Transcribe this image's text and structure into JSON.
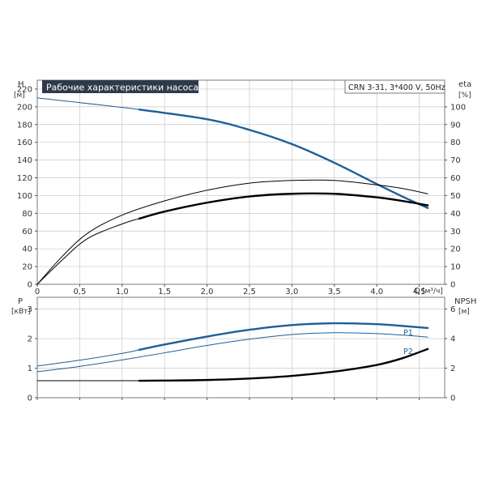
{
  "colors": {
    "blue": "#1f5f96",
    "black": "#000000",
    "title_bg": "#2d3a4a",
    "title_fg": "#ffffff",
    "grid": "#c8c8c8"
  },
  "chart_data": [
    {
      "type": "line",
      "title": "Рабочие характеристики насоса",
      "model": "CRN 3-31, 3*400 V, 50Hz",
      "xlabel": "Q",
      "xunit": "[м³/ч]",
      "xlim": [
        0,
        4.8
      ],
      "xticks": [
        0,
        0.5,
        1.0,
        1.5,
        2.0,
        2.5,
        3.0,
        3.5,
        4.0,
        4.5
      ],
      "xtick_labels": [
        "0",
        "0,5",
        "1,0",
        "1,5",
        "2,0",
        "2,5",
        "3,0",
        "3,5",
        "4,0",
        "4,5"
      ],
      "ylabel_left": "H",
      "yunit_left": "[м]",
      "ylim_left": [
        0,
        230
      ],
      "yticks_left": [
        0,
        20,
        40,
        60,
        80,
        100,
        120,
        140,
        160,
        180,
        200,
        220
      ],
      "ylabel_right": "eta",
      "yunit_right": "[%]",
      "ylim_right": [
        0,
        115
      ],
      "yticks_right": [
        0,
        10,
        20,
        30,
        40,
        50,
        60,
        70,
        80,
        90,
        100
      ],
      "grid": true,
      "series": [
        {
          "axis": "left",
          "color": "#1f5f96",
          "points": [
            [
              0,
              210
            ],
            [
              1.2,
              197
            ],
            [
              2.0,
              186
            ],
            [
              2.5,
              174
            ],
            [
              3.0,
              158
            ],
            [
              3.5,
              137
            ],
            [
              4.0,
              113
            ],
            [
              4.3,
              99
            ],
            [
              4.6,
              86
            ]
          ],
          "bold_from": 1.2
        },
        {
          "axis": "right",
          "color": "#000000",
          "points": [
            [
              0,
              0
            ],
            [
              0.3,
              16
            ],
            [
              0.6,
              29
            ],
            [
              1.0,
              39
            ],
            [
              1.5,
              47
            ],
            [
              2.0,
              53
            ],
            [
              2.5,
              57
            ],
            [
              3.0,
              58.5
            ],
            [
              3.5,
              58.5
            ],
            [
              4.0,
              56
            ],
            [
              4.3,
              54
            ],
            [
              4.6,
              51
            ]
          ]
        },
        {
          "axis": "right",
          "color": "#000000",
          "points": [
            [
              0,
              0
            ],
            [
              0.3,
              14
            ],
            [
              0.6,
              26
            ],
            [
              1.0,
              34
            ],
            [
              1.2,
              37
            ],
            [
              1.5,
              41
            ],
            [
              2.0,
              46
            ],
            [
              2.5,
              49.5
            ],
            [
              3.0,
              51
            ],
            [
              3.5,
              51
            ],
            [
              4.0,
              49
            ],
            [
              4.3,
              47
            ],
            [
              4.6,
              44.5
            ]
          ],
          "bold_from": 1.2
        }
      ]
    },
    {
      "type": "line",
      "xlim": [
        0,
        4.8
      ],
      "xticks": [
        0,
        0.5,
        1.0,
        1.5,
        2.0,
        2.5,
        3.0,
        3.5,
        4.0,
        4.5
      ],
      "ylabel_left": "P",
      "yunit_left": "[кВт]",
      "ylim_left": [
        0,
        3.4
      ],
      "yticks_left": [
        0,
        1,
        2,
        3
      ],
      "ylabel_right": "NPSH",
      "yunit_right": "[м]",
      "ylim_right": [
        0,
        6.8
      ],
      "yticks_right": [
        0,
        2,
        4,
        6
      ],
      "grid": true,
      "series": [
        {
          "name": "P1",
          "axis": "left",
          "color": "#1f5f96",
          "points": [
            [
              0,
              1.07
            ],
            [
              0.5,
              1.27
            ],
            [
              1.0,
              1.5
            ],
            [
              1.2,
              1.62
            ],
            [
              1.5,
              1.8
            ],
            [
              2.0,
              2.07
            ],
            [
              2.5,
              2.3
            ],
            [
              3.0,
              2.46
            ],
            [
              3.5,
              2.52
            ],
            [
              4.0,
              2.49
            ],
            [
              4.3,
              2.43
            ],
            [
              4.6,
              2.36
            ]
          ],
          "bold_from": 1.2
        },
        {
          "name": "P2",
          "axis": "left",
          "color": "#1f5f96",
          "points": [
            [
              0,
              0.88
            ],
            [
              0.5,
              1.06
            ],
            [
              1.0,
              1.28
            ],
            [
              1.5,
              1.52
            ],
            [
              2.0,
              1.77
            ],
            [
              2.5,
              1.98
            ],
            [
              3.0,
              2.14
            ],
            [
              3.5,
              2.2
            ],
            [
              4.0,
              2.17
            ],
            [
              4.3,
              2.12
            ],
            [
              4.6,
              2.05
            ]
          ]
        },
        {
          "axis": "right",
          "color": "#000000",
          "points": [
            [
              0,
              1.15
            ],
            [
              1.2,
              1.15
            ],
            [
              1.5,
              1.16
            ],
            [
              2.0,
              1.2
            ],
            [
              2.5,
              1.3
            ],
            [
              3.0,
              1.48
            ],
            [
              3.5,
              1.77
            ],
            [
              4.0,
              2.22
            ],
            [
              4.3,
              2.67
            ],
            [
              4.6,
              3.3
            ]
          ],
          "bold_from": 1.2
        }
      ]
    }
  ]
}
